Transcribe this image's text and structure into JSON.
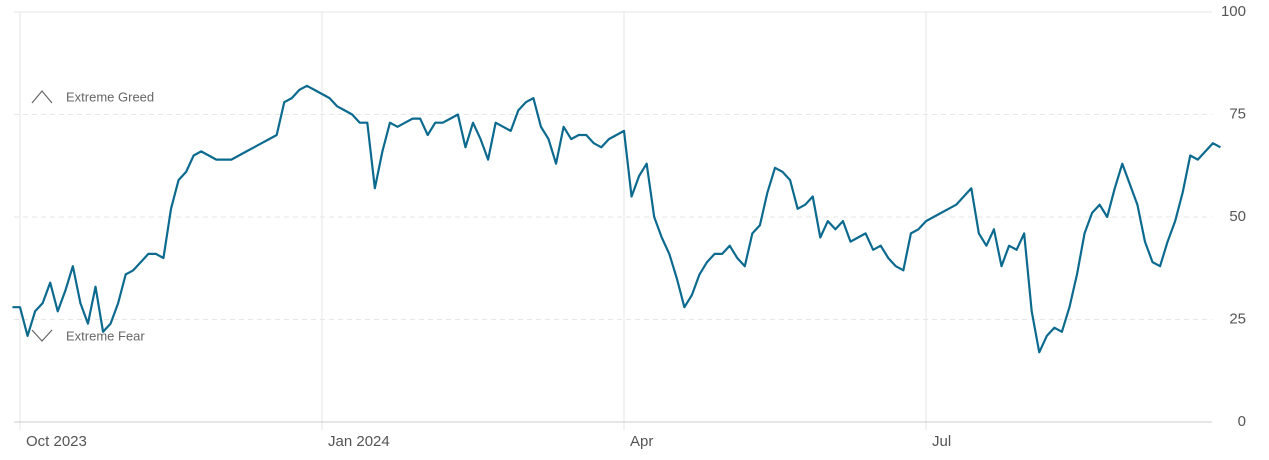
{
  "chart_data": {
    "type": "line",
    "annotations": [
      "Extreme Greed",
      "Extreme Fear"
    ],
    "categories": [
      null,
      "Oct 2023",
      null,
      null,
      null,
      null,
      null,
      null,
      null,
      null,
      null,
      null,
      null,
      null,
      null,
      null,
      null,
      null,
      null,
      null,
      null,
      null,
      null,
      null,
      null,
      null,
      null,
      null,
      null,
      null,
      null,
      null,
      null,
      null,
      null,
      null,
      null,
      null,
      null,
      null,
      null,
      "Jan 2024",
      null,
      null,
      null,
      null,
      null,
      null,
      null,
      null,
      null,
      null,
      null,
      null,
      null,
      null,
      null,
      null,
      null,
      null,
      null,
      null,
      null,
      null,
      null,
      null,
      null,
      null,
      null,
      null,
      null,
      null,
      null,
      null,
      null,
      null,
      null,
      null,
      null,
      null,
      null,
      "Apr",
      null,
      null,
      null,
      null,
      null,
      null,
      null,
      null,
      null,
      null,
      null,
      null,
      null,
      null,
      null,
      null,
      null,
      null,
      null,
      null,
      null,
      null,
      null,
      null,
      null,
      null,
      null,
      null,
      null,
      null,
      null,
      null,
      null,
      null,
      null,
      null,
      null,
      null,
      null,
      "Jul",
      null,
      null,
      null,
      null,
      null,
      null,
      null,
      null,
      null,
      null,
      null,
      null,
      null,
      null,
      null,
      null,
      null,
      null,
      null,
      null,
      null,
      null,
      null,
      null,
      null,
      null,
      null,
      null,
      null,
      null,
      null,
      null,
      null,
      null,
      null,
      null,
      null,
      null,
      null
    ],
    "series": [
      {
        "color": "#0d6a8f",
        "values": [
          28,
          28,
          21,
          27,
          29,
          34,
          27,
          32,
          38,
          29,
          24,
          33,
          22,
          24,
          29,
          36,
          37,
          39,
          41,
          41,
          40,
          52,
          59,
          61,
          65,
          66,
          65,
          64,
          64,
          64,
          65,
          66,
          67,
          68,
          69,
          70,
          78,
          79,
          81,
          82,
          81,
          80,
          79,
          77,
          76,
          75,
          73,
          73,
          57,
          66,
          73,
          72,
          73,
          74,
          74,
          70,
          73,
          73,
          74,
          75,
          67,
          73,
          69,
          64,
          73,
          72,
          71,
          76,
          78,
          79,
          72,
          69,
          63,
          72,
          69,
          70,
          70,
          68,
          67,
          69,
          70,
          71,
          55,
          60,
          63,
          50,
          45,
          41,
          35,
          28,
          31,
          36,
          39,
          41,
          41,
          43,
          40,
          38,
          46,
          48,
          56,
          62,
          61,
          59,
          52,
          53,
          55,
          45,
          49,
          47,
          49,
          44,
          45,
          46,
          42,
          43,
          40,
          38,
          37,
          46,
          47,
          49,
          50,
          51,
          52,
          53,
          55,
          57,
          46,
          43,
          47,
          38,
          43,
          42,
          46,
          27,
          17,
          21,
          23,
          22,
          28,
          36,
          46,
          51,
          53,
          50,
          57,
          63,
          58,
          53,
          44,
          39,
          38,
          44,
          49,
          56,
          65,
          64,
          66,
          68,
          67
        ]
      }
    ],
    "ylim": [
      0,
      100
    ],
    "yticks": [
      0,
      25,
      50,
      75,
      100
    ],
    "grid": true
  }
}
